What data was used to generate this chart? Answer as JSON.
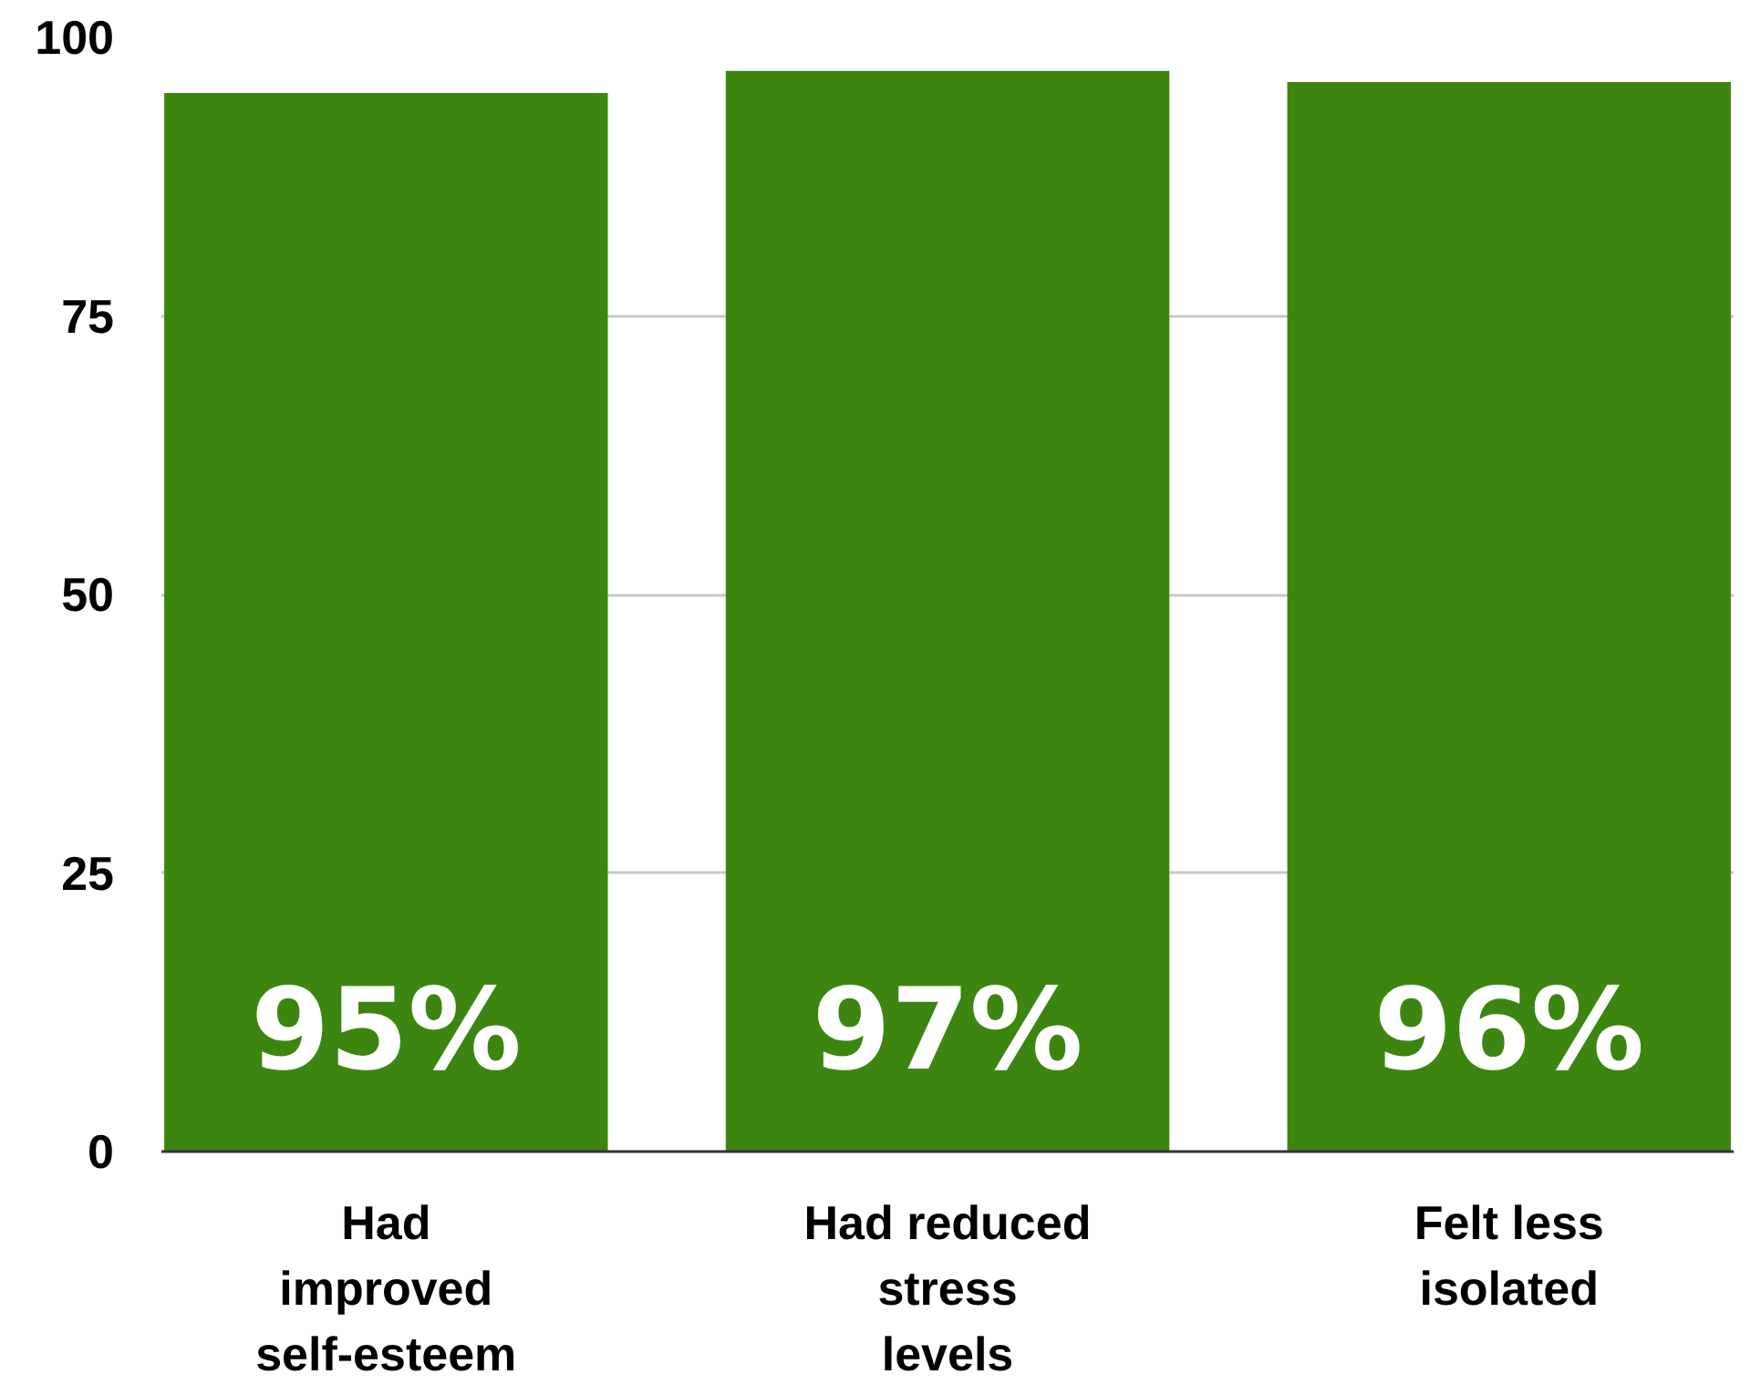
{
  "chart_data": {
    "type": "bar",
    "categories": [
      "Had\nimproved\nself-esteem",
      "Had reduced\nstress\nlevels",
      "Felt less\nisolated"
    ],
    "values": [
      95,
      97,
      96
    ],
    "value_labels": [
      "95%",
      "97%",
      "96%"
    ],
    "color": "#3d8511",
    "ylim": [
      0,
      100
    ],
    "yticks": [
      0,
      25,
      50,
      75,
      100
    ],
    "grid": "y"
  }
}
